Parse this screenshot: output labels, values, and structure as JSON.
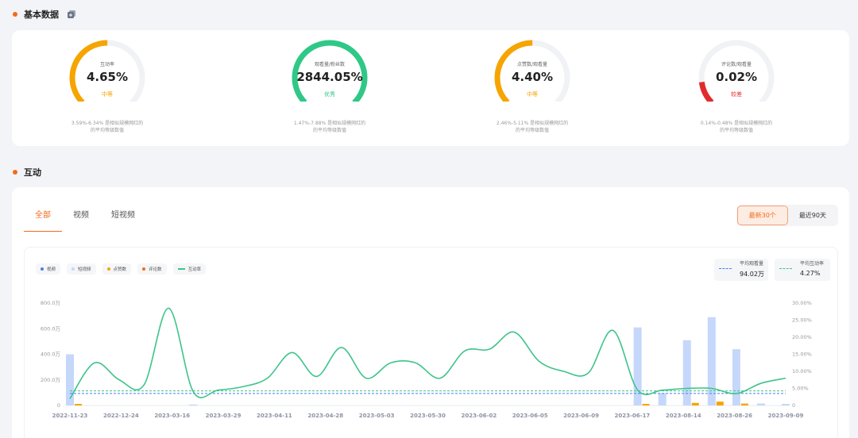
{
  "sections": {
    "basic_title": "基本数据",
    "interact_title": "互动"
  },
  "colors": {
    "accent": "#f26b1d",
    "medium": "#f6a500",
    "good": "#2fc887",
    "poor": "#e02c2c"
  },
  "metrics": [
    {
      "label": "互动率",
      "value": "4.65%",
      "level": "中等",
      "level_color": "#f6a500",
      "fill": 0.5,
      "desc1": "3.59%-6.34% 是相似规模网红的",
      "desc2": "的平均等级数值"
    },
    {
      "label": "观看量/粉丝数",
      "value": "2844.05%",
      "level": "优秀",
      "level_color": "#2fc887",
      "fill": 1.0,
      "desc1": "1.47%-7.88% 是相似规模网红的",
      "desc2": "的平均等级数值"
    },
    {
      "label": "点赞数/观看量",
      "value": "4.40%",
      "level": "中等",
      "level_color": "#f6a500",
      "fill": 0.5,
      "desc1": "2.46%-5.11% 是相似规模网红的",
      "desc2": "的平均等级数值"
    },
    {
      "label": "评论数/观看量",
      "value": "0.02%",
      "level": "较差",
      "level_color": "#e02c2c",
      "fill": 0.14,
      "desc1": "0.14%-0.48% 是相似规模网红的",
      "desc2": "的平均等级数值"
    }
  ],
  "tabs": [
    "全部",
    "视频",
    "短视频"
  ],
  "range": [
    "最新30个",
    "最近90天"
  ],
  "legend": [
    {
      "label": "视频",
      "color": "#4a7cf0",
      "kind": "dot"
    },
    {
      "label": "短视频",
      "color": "#c5d8fb",
      "kind": "dot"
    },
    {
      "label": "点赞数",
      "color": "#f6a500",
      "kind": "dot"
    },
    {
      "label": "评论数",
      "color": "#f26b1d",
      "kind": "dot"
    },
    {
      "label": "互动率",
      "color": "#3dc489",
      "kind": "line"
    }
  ],
  "averages": {
    "views_label": "平均观看量",
    "views_value": "94.02万",
    "rate_label": "平均互动率",
    "rate_value": "4.27%"
  },
  "chart_data": {
    "type": "bar",
    "categories": [
      "2022-11-23",
      "2022-12-24",
      "2023-03-16",
      "2023-03-29",
      "2023-04-11",
      "2023-04-28",
      "2023-05-03",
      "2023-05-30",
      "2023-06-02",
      "2023-06-05",
      "2023-06-09",
      "2023-06-17",
      "2023-08-14",
      "2023-08-26",
      "2023-09-09"
    ],
    "y_ticks": [
      "0",
      "200.0万",
      "400.0万",
      "600.0万",
      "800.0万"
    ],
    "y2_ticks": [
      "0",
      "5.00%",
      "10.00%",
      "15.00%",
      "20.00%",
      "25.00%",
      "30.00%"
    ],
    "ylim": [
      0,
      800
    ],
    "y2lim": [
      0,
      30
    ],
    "n_points": 30,
    "short_video_bars": [
      {
        "i": 0,
        "value": 400
      },
      {
        "i": 5,
        "value": 8
      },
      {
        "i": 23,
        "value": 610
      },
      {
        "i": 24,
        "value": 95
      },
      {
        "i": 25,
        "value": 510
      },
      {
        "i": 26,
        "value": 690
      },
      {
        "i": 27,
        "value": 440
      },
      {
        "i": 28,
        "value": 15
      },
      {
        "i": 29,
        "value": 12
      }
    ],
    "like_bars": [
      {
        "i": 0,
        "value": 8
      },
      {
        "i": 23,
        "value": 12
      },
      {
        "i": 25,
        "value": 20
      },
      {
        "i": 26,
        "value": 30
      },
      {
        "i": 27,
        "value": 15
      }
    ],
    "engagement_rate": [
      2.0,
      12.5,
      7.5,
      6.0,
      28.5,
      4.0,
      4.5,
      5.5,
      8.0,
      15.5,
      8.5,
      17.0,
      8.0,
      12.5,
      12.5,
      8.0,
      16.0,
      16.5,
      21.5,
      13.0,
      10.0,
      9.5,
      22.0,
      4.5,
      4.5,
      5.0,
      5.0,
      3.5,
      6.5,
      8.0
    ],
    "avg_views": 94.02,
    "avg_rate": 4.27
  }
}
